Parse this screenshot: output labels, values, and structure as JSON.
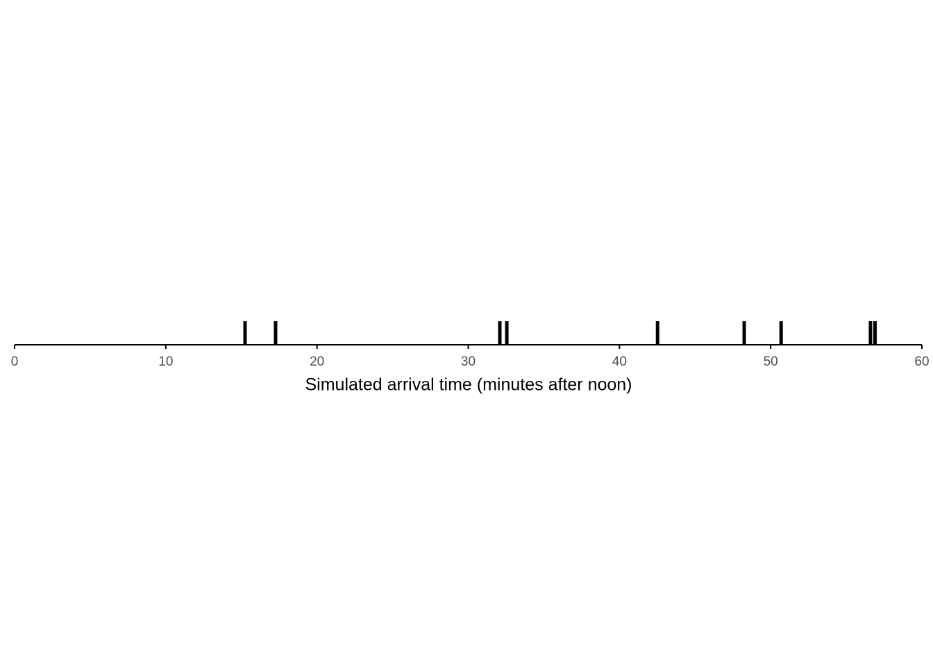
{
  "chart_data": {
    "type": "rug",
    "x_label": "Simulated arrival time (minutes after noon)",
    "values": [
      15.24,
      17.26,
      32.09,
      32.55,
      42.52,
      48.25,
      50.69,
      56.6,
      56.9
    ],
    "color": "#000000",
    "xlim": [
      0,
      60
    ],
    "xticks": [
      0,
      10,
      20,
      30,
      40,
      50,
      60
    ]
  }
}
